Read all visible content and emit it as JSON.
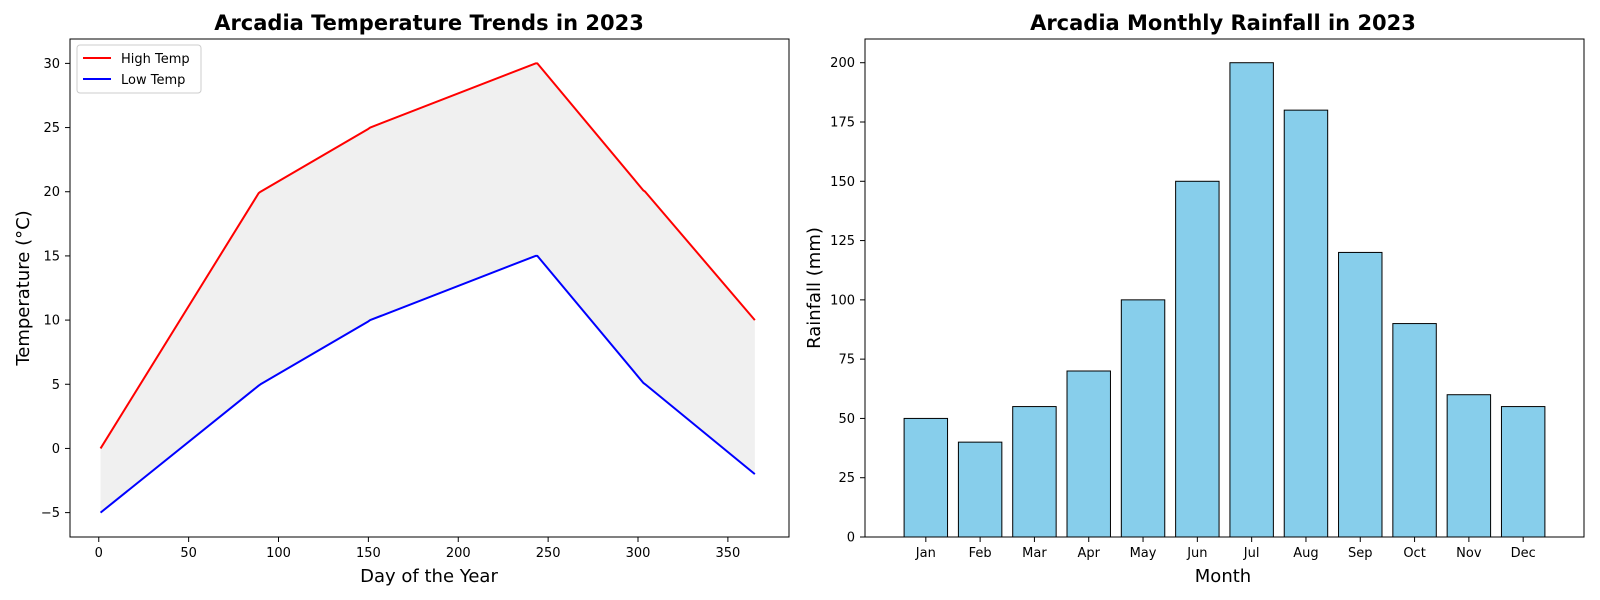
{
  "chart_data": [
    {
      "type": "line",
      "title": "Arcadia Temperature Trends in 2023",
      "xlabel": "Day of the Year",
      "ylabel": "Temperature (°C)",
      "xlim": [
        -16,
        384
      ],
      "ylim": [
        -6.9,
        31.9
      ],
      "xticks": [
        0,
        50,
        100,
        150,
        200,
        250,
        300,
        350
      ],
      "yticks": [
        -5,
        0,
        5,
        10,
        15,
        20,
        25,
        30
      ],
      "grid": false,
      "legend": "top-left",
      "fill_between": {
        "series": [
          "High Temp",
          "Low Temp"
        ],
        "color": "#f0f0f0"
      },
      "series": [
        {
          "name": "High Temp",
          "color": "#ff0000",
          "x": [
            1,
            89,
            90,
            150,
            151,
            243,
            244,
            303,
            304,
            365
          ],
          "y": [
            0,
            19.9,
            20,
            24.9,
            25,
            30,
            30,
            20.1,
            20,
            10
          ]
        },
        {
          "name": "Low Temp",
          "color": "#0000ff",
          "x": [
            1,
            89,
            90,
            150,
            151,
            243,
            244,
            303,
            304,
            365
          ],
          "y": [
            -5,
            4.9,
            5,
            9.9,
            10,
            15,
            15,
            5.1,
            5,
            -2
          ]
        }
      ]
    },
    {
      "type": "bar",
      "title": "Arcadia Monthly Rainfall in 2023",
      "xlabel": "Month",
      "ylabel": "Rainfall (mm)",
      "ylim": [
        0,
        210
      ],
      "yticks": [
        0,
        25,
        50,
        75,
        100,
        125,
        150,
        175,
        200
      ],
      "grid": false,
      "bar_color": "#87ceeb",
      "edge_color": "#000000",
      "categories": [
        "Jan",
        "Feb",
        "Mar",
        "Apr",
        "May",
        "Jun",
        "Jul",
        "Aug",
        "Sep",
        "Oct",
        "Nov",
        "Dec"
      ],
      "values": [
        50,
        40,
        55,
        70,
        100,
        150,
        200,
        180,
        120,
        90,
        60,
        55
      ]
    }
  ]
}
